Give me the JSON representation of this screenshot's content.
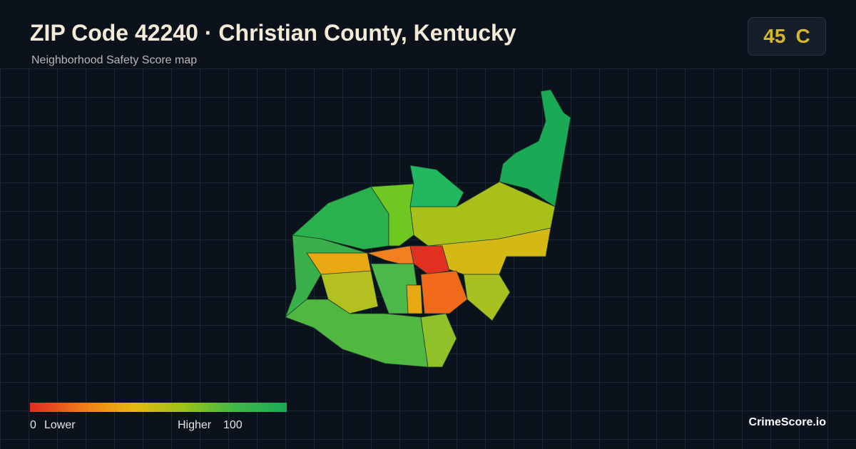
{
  "header": {
    "title": "ZIP Code 42240 · Christian County, Kentucky",
    "subtitle": "Neighborhood Safety Score map"
  },
  "score": {
    "value": "45",
    "grade": "C"
  },
  "legend": {
    "min": "0",
    "min_label": "Lower",
    "max_label": "Higher",
    "max": "100"
  },
  "brand": "CrimeScore.io"
}
